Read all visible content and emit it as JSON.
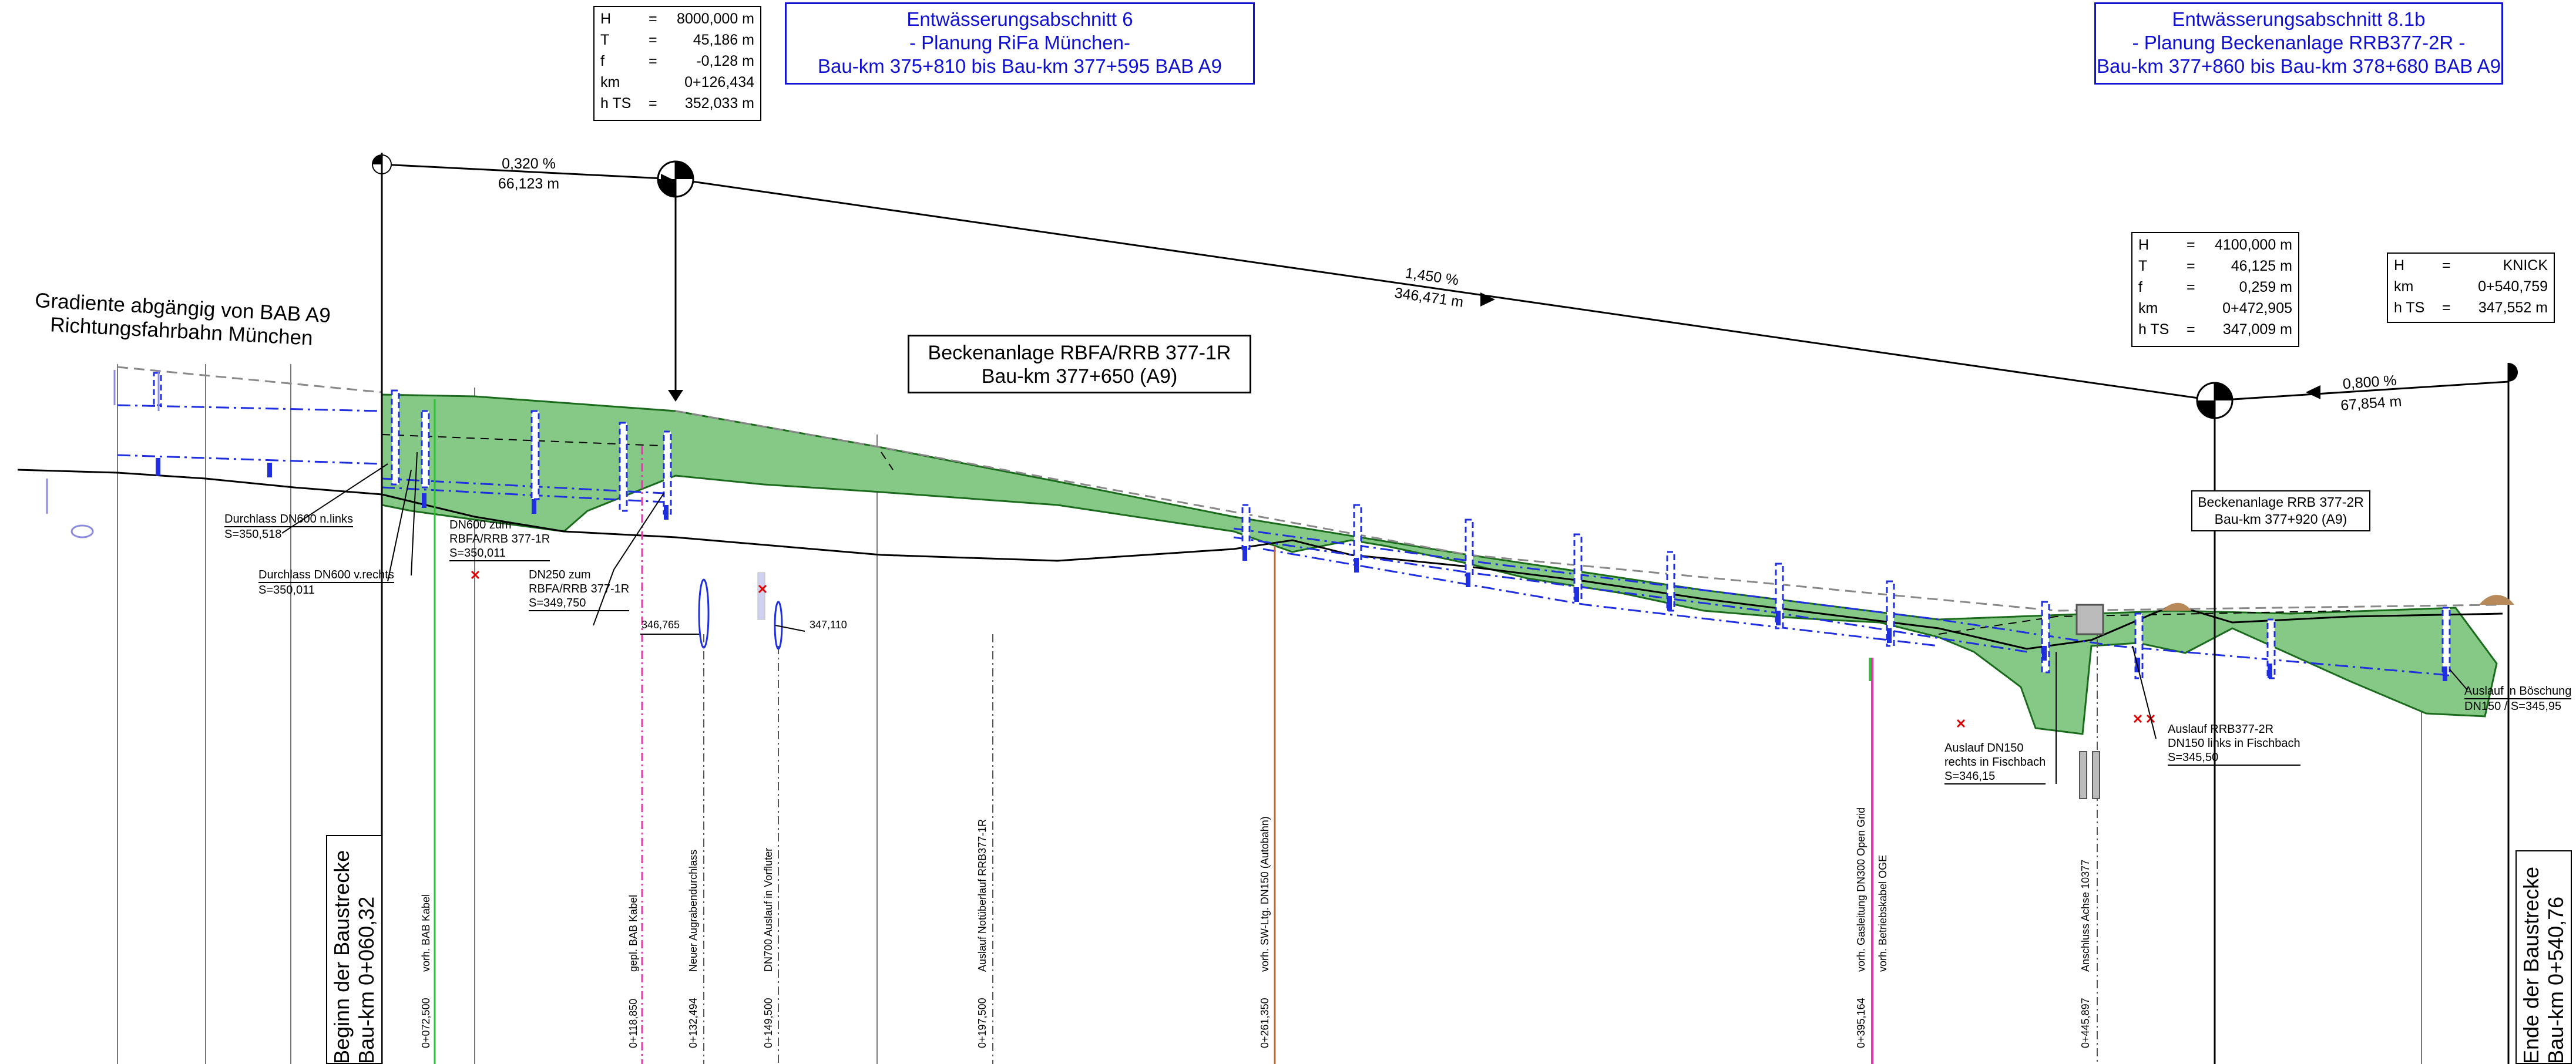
{
  "colors": {
    "fill": "#86c987",
    "fillStroke": "#1a6b1c",
    "pipe": "#1f2fe0",
    "text": "#000000",
    "magenta": "#e03aa8",
    "green": "#2ec43a",
    "brown": "#c06a3a",
    "cross": "#e00000"
  },
  "headers": [
    {
      "lines": [
        "Entwässerungsabschnitt 6",
        "- Planung  RiFa München-",
        "Bau-km 375+810 bis Bau-km 377+595 BAB A9"
      ]
    },
    {
      "lines": [
        "Entwässerungsabschnitt 8.1b",
        "- Planung Beckenanlage RRB377-2R -",
        "Bau-km 377+860 bis Bau-km 378+680 BAB A9"
      ]
    }
  ],
  "info_boxes": [
    {
      "rows": [
        [
          "H",
          "=",
          "8000,000 m"
        ],
        [
          "T",
          "=",
          "45,186 m"
        ],
        [
          "f",
          "=",
          "-0,128 m"
        ],
        [
          "km",
          "",
          "0+126,434"
        ],
        [
          "h TS",
          "=",
          "352,033 m"
        ]
      ]
    },
    {
      "rows": [
        [
          "H",
          "=",
          "4100,000 m"
        ],
        [
          "T",
          "=",
          "46,125 m"
        ],
        [
          "f",
          "=",
          "0,259 m"
        ],
        [
          "km",
          "",
          "0+472,905"
        ],
        [
          "h TS",
          "=",
          "347,009 m"
        ]
      ]
    },
    {
      "rows": [
        [
          "H",
          "=",
          "KNICK"
        ],
        [
          "km",
          "",
          "0+540,759"
        ],
        [
          "h TS",
          "=",
          "347,552 m"
        ]
      ]
    }
  ],
  "gradients": [
    {
      "percent": "0,320 %",
      "length": "66,123 m"
    },
    {
      "percent": "1,450 %",
      "length": "346,471 m"
    },
    {
      "percent": "0,800 %",
      "length": "67,854 m"
    }
  ],
  "gradient_note": [
    "Gradiente abgängig von BAB A9",
    "Richtungsfahrbahn München"
  ],
  "basins": [
    {
      "lines": [
        "Beckenanlage RBFA/RRB 377-1R",
        "Bau-km 377+650 (A9)"
      ]
    },
    {
      "lines": [
        "Beckenanlage RRB 377-2R",
        "Bau-km 377+920 (A9)"
      ]
    }
  ],
  "annotations": [
    {
      "lines": [
        "Durchlass DN600 n.links",
        "S=350,518"
      ]
    },
    {
      "lines": [
        "DN600 zum",
        "RBFA/RRB 377-1R",
        "S=350,011"
      ]
    },
    {
      "lines": [
        "Durchlass DN600 v.rechts",
        "S=350,011"
      ]
    },
    {
      "lines": [
        "DN250 zum",
        "RBFA/RRB 377-1R",
        "S=349,750"
      ]
    },
    {
      "lines": [
        "346,765"
      ]
    },
    {
      "lines": [
        "347,110"
      ]
    },
    {
      "lines": [
        "Auslauf DN150",
        "rechts in Fischbach",
        "S=346,15"
      ]
    },
    {
      "lines": [
        "Auslauf RRB377-2R",
        "DN150 links in Fischbach",
        "S=345,50"
      ]
    },
    {
      "lines": [
        "Auslauf in Böschung",
        "DN150 / S=345,95"
      ]
    }
  ],
  "section_markers": [
    {
      "lines": [
        "Beginn der Baustrecke",
        "Bau-km 0+060,32"
      ]
    },
    {
      "lines": [
        "Ende der Baustrecke",
        "Bau-km 0+540,76"
      ]
    }
  ],
  "verticals": [
    {
      "station": "0+072,500",
      "name": "vorh. BAB Kabel"
    },
    {
      "station": "0+118,850",
      "name": "gepl. BAB Kabel"
    },
    {
      "station": "0+132,494",
      "name": "Neuer Augrabendurchlass"
    },
    {
      "station": "0+149,500",
      "name": "DN700 Auslauf in Vorfluter"
    },
    {
      "station": "0+197,500",
      "name": "Auslauf Notüberlauf RRB377-1R"
    },
    {
      "station": "0+261,350",
      "name": "vorh. SW-Ltg. DN150 (Autobahn)"
    },
    {
      "station": "0+395,164",
      "name": "vorh. Gasleitung DN300 Open Grid"
    },
    {
      "station": "",
      "name": "vorh. Betriebskabel OGE"
    },
    {
      "station": "0+445,897",
      "name": "Anschluss Achse 10377"
    }
  ]
}
